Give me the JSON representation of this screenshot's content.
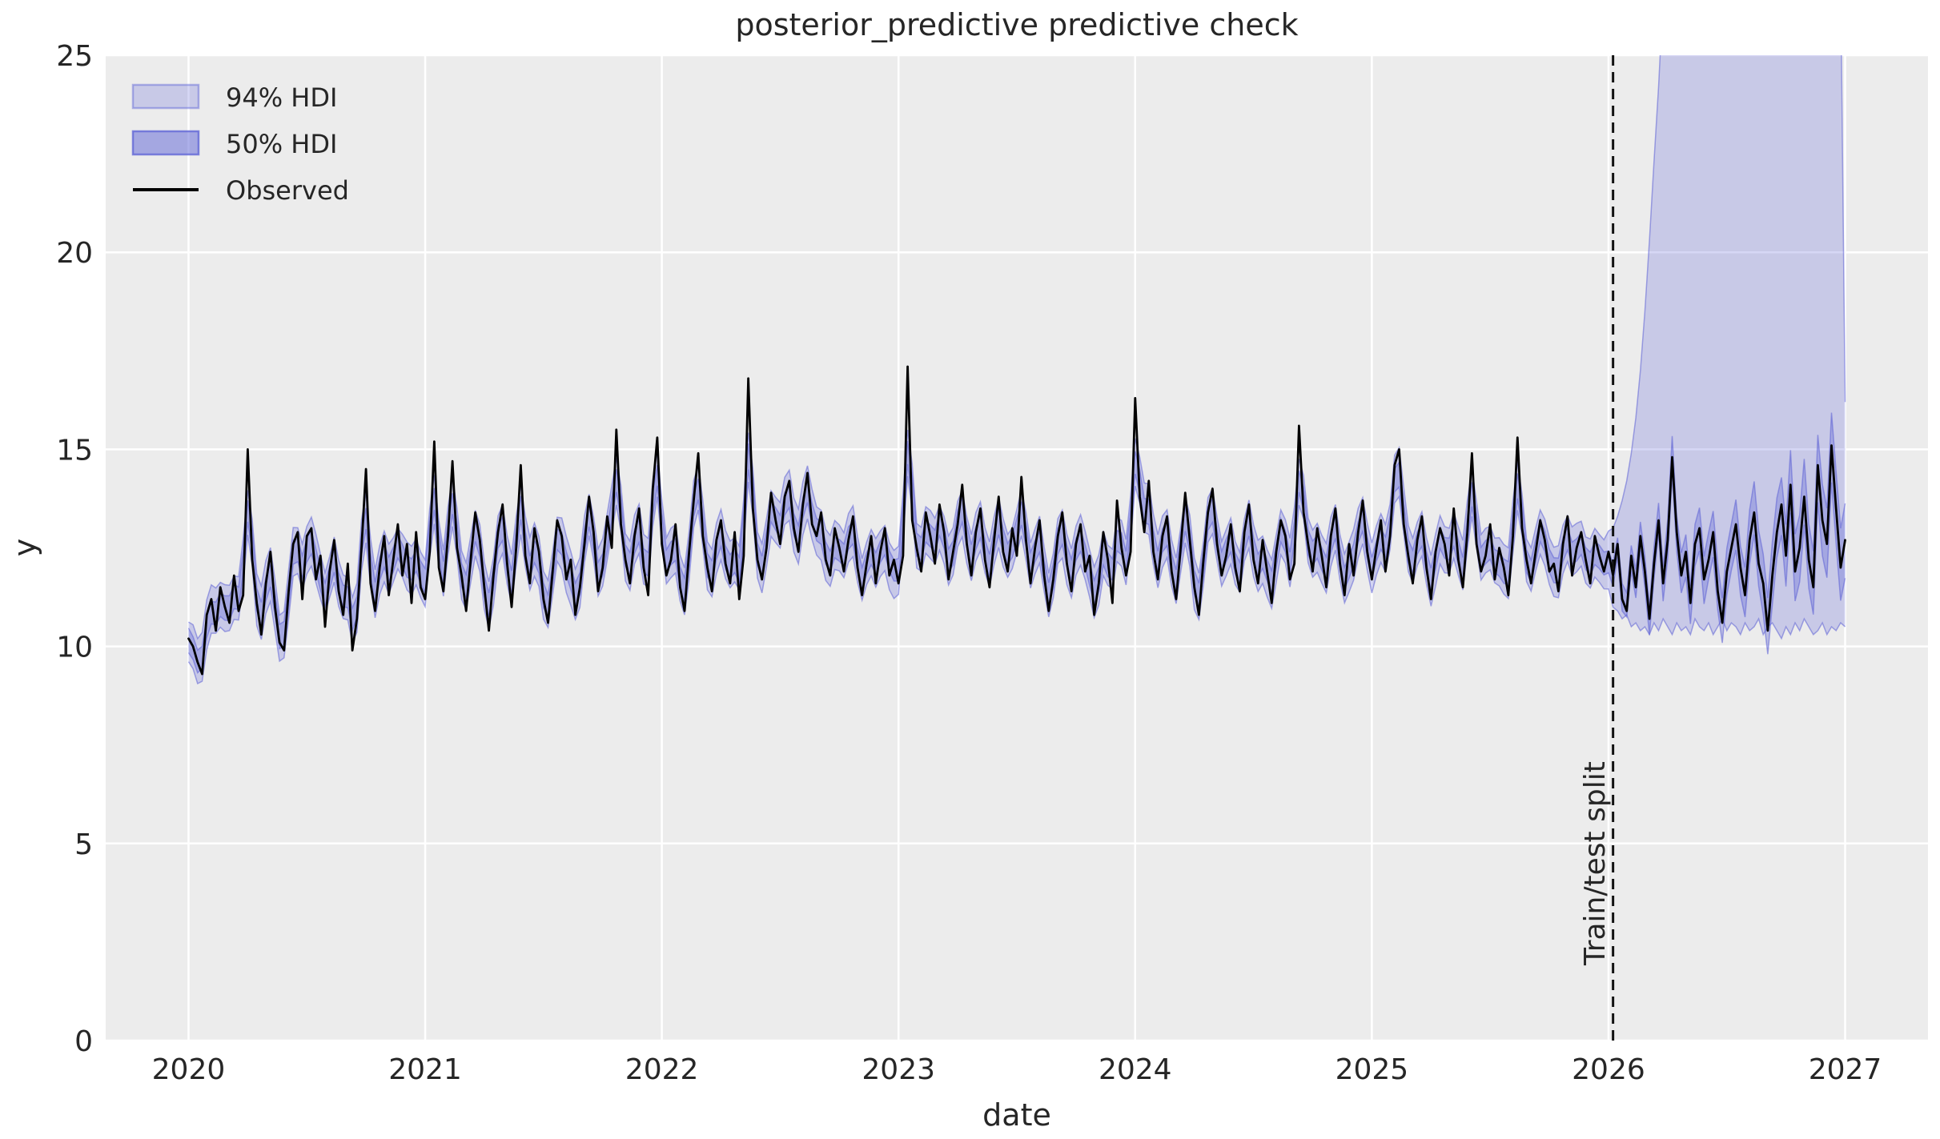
{
  "figure": {
    "title": "posterior_predictive predictive check",
    "xlabel": "date",
    "ylabel": "y"
  },
  "legend": {
    "items": [
      {
        "label": "94% HDI",
        "type": "patch",
        "level": 94
      },
      {
        "label": "50% HDI",
        "type": "patch",
        "level": 50
      },
      {
        "label": "Observed",
        "type": "line"
      }
    ]
  },
  "split": {
    "label": "Train/test split",
    "x": 2026.0192
  },
  "chart_data": {
    "type": "line",
    "title": "posterior_predictive predictive check",
    "xlabel": "date",
    "ylabel": "y",
    "xlim": [
      2019.65,
      2027.35
    ],
    "ylim": [
      0,
      25
    ],
    "xticks": [
      2020,
      2021,
      2022,
      2023,
      2024,
      2025,
      2026,
      2027
    ],
    "yticks": [
      0,
      5,
      10,
      15,
      20,
      25
    ],
    "grid": true,
    "legend_position": "upper left",
    "x_start": 2020.0,
    "x_step_years": 0.01923076923,
    "n_points": 365,
    "split_index": 313,
    "split_x": 2026.0192,
    "observed": [
      10.2,
      10.0,
      9.6,
      9.3,
      10.8,
      11.2,
      10.4,
      11.5,
      11.0,
      10.6,
      11.8,
      10.9,
      11.3,
      15.0,
      12.2,
      11.1,
      10.3,
      11.6,
      12.4,
      11.0,
      10.1,
      9.9,
      11.4,
      12.6,
      12.9,
      11.2,
      12.8,
      13.0,
      11.7,
      12.3,
      10.5,
      11.9,
      12.7,
      11.4,
      10.8,
      12.1,
      9.9,
      10.7,
      12.5,
      14.5,
      11.6,
      10.9,
      12.0,
      12.8,
      11.3,
      12.2,
      13.1,
      11.8,
      12.6,
      11.1,
      12.9,
      11.5,
      11.2,
      12.4,
      15.2,
      12.0,
      11.4,
      12.8,
      14.7,
      12.5,
      11.8,
      10.9,
      12.2,
      13.4,
      12.7,
      11.5,
      10.4,
      11.8,
      12.9,
      13.6,
      12.1,
      11.0,
      12.5,
      14.6,
      12.3,
      11.6,
      13.0,
      12.4,
      11.2,
      10.6,
      11.9,
      13.2,
      12.8,
      11.7,
      12.2,
      10.8,
      11.5,
      12.6,
      13.8,
      12.9,
      11.4,
      12.0,
      13.3,
      12.5,
      15.5,
      13.1,
      12.2,
      11.6,
      12.8,
      13.5,
      12.0,
      11.3,
      14.0,
      15.3,
      12.6,
      11.8,
      12.2,
      13.1,
      11.5,
      10.9,
      12.4,
      13.7,
      14.9,
      12.8,
      12.0,
      11.4,
      12.7,
      13.2,
      12.1,
      11.6,
      12.9,
      11.2,
      12.3,
      16.8,
      13.5,
      12.2,
      11.7,
      12.5,
      13.9,
      13.2,
      12.6,
      13.8,
      14.2,
      13.0,
      12.4,
      13.6,
      14.4,
      13.1,
      12.8,
      13.4,
      12.2,
      11.8,
      13.0,
      12.5,
      11.9,
      12.7,
      13.3,
      12.0,
      11.3,
      12.1,
      12.8,
      11.6,
      12.4,
      13.0,
      11.8,
      12.2,
      11.6,
      12.3,
      17.1,
      13.2,
      12.5,
      11.9,
      13.4,
      12.8,
      12.1,
      13.6,
      12.9,
      11.7,
      12.4,
      13.1,
      14.1,
      12.6,
      11.8,
      12.9,
      13.5,
      12.2,
      11.5,
      12.7,
      13.8,
      12.4,
      11.9,
      13.0,
      12.3,
      14.3,
      12.7,
      11.6,
      12.5,
      13.2,
      11.8,
      10.9,
      11.7,
      12.8,
      13.4,
      12.1,
      11.4,
      12.6,
      13.1,
      11.9,
      12.3,
      10.8,
      11.6,
      12.9,
      12.2,
      11.1,
      13.7,
      12.5,
      11.8,
      12.4,
      16.3,
      13.8,
      12.9,
      14.2,
      12.4,
      11.7,
      12.8,
      13.3,
      11.9,
      11.2,
      12.5,
      13.9,
      12.7,
      11.5,
      10.8,
      12.2,
      13.4,
      14.0,
      12.6,
      11.8,
      12.3,
      13.1,
      12.0,
      11.4,
      12.9,
      13.6,
      12.2,
      11.6,
      12.7,
      11.9,
      11.1,
      12.4,
      13.2,
      12.8,
      11.7,
      12.1,
      15.6,
      13.4,
      12.6,
      11.9,
      13.0,
      12.3,
      11.5,
      12.8,
      13.5,
      12.1,
      11.3,
      12.6,
      11.8,
      12.9,
      13.7,
      12.4,
      11.7,
      12.5,
      13.2,
      11.9,
      12.8,
      14.6,
      15.0,
      13.1,
      12.3,
      11.6,
      12.7,
      13.3,
      12.0,
      11.2,
      12.4,
      13.0,
      12.6,
      11.8,
      13.5,
      12.2,
      11.5,
      12.9,
      14.9,
      12.6,
      11.9,
      12.3,
      13.1,
      11.7,
      12.5,
      12.0,
      11.3,
      12.8,
      15.3,
      13.0,
      12.2,
      11.6,
      12.4,
      13.2,
      12.7,
      11.9,
      12.1,
      11.4,
      12.6,
      13.3,
      11.8,
      12.5,
      12.9,
      12.2,
      11.6,
      12.8,
      12.3,
      11.9,
      12.4,
      11.8,
      12.6,
      11.2,
      10.9,
      12.3,
      11.5,
      12.8,
      11.9,
      10.7,
      12.1,
      13.2,
      11.6,
      12.7,
      14.8,
      12.9,
      11.8,
      12.4,
      11.1,
      12.6,
      13.0,
      11.7,
      12.2,
      12.9,
      11.4,
      10.6,
      11.9,
      12.5,
      13.1,
      12.0,
      11.3,
      12.7,
      13.4,
      12.1,
      11.6,
      10.4,
      11.8,
      12.9,
      13.6,
      12.3,
      14.1,
      11.9,
      12.5,
      13.8,
      12.2,
      11.5,
      14.6,
      13.2,
      12.6,
      15.1,
      13.5,
      12.0,
      12.7
    ],
    "hdi94_test_hi": [
      13.0,
      13.3,
      13.7,
      14.2,
      14.9,
      15.8,
      17.0,
      18.5,
      20.3,
      22.3,
      24.2,
      26.5,
      29.5,
      33.0,
      36.5,
      39.5,
      42.0,
      43.8,
      45.0,
      45.8,
      46.2,
      46.4,
      46.2,
      46.5,
      46.3,
      46.6,
      46.3,
      46.1,
      46.4,
      46.0,
      46.3,
      45.9,
      46.2,
      45.8,
      46.1,
      45.7,
      46.0,
      45.6,
      45.9,
      45.5,
      45.8,
      45.4,
      45.7,
      45.3,
      45.6,
      45.1,
      44.8,
      44.2,
      43.0,
      38.0,
      27.0,
      16.2
    ],
    "hdi94_test_lo": [
      11.0,
      10.9,
      10.7,
      10.8,
      10.5,
      10.6,
      10.4,
      10.5,
      10.3,
      10.6,
      10.4,
      10.7,
      10.5,
      10.3,
      10.6,
      10.4,
      10.5,
      10.3,
      10.7,
      10.5,
      10.4,
      10.6,
      10.3,
      10.5,
      10.7,
      10.4,
      10.6,
      10.5,
      10.3,
      10.6,
      10.4,
      10.5,
      10.7,
      10.3,
      10.5,
      10.6,
      10.4,
      10.2,
      10.5,
      10.3,
      10.6,
      10.4,
      10.7,
      10.5,
      10.3,
      10.4,
      10.6,
      10.3,
      10.5,
      10.4,
      10.6,
      10.5
    ],
    "band_params": {
      "train_hw94_base": 0.45,
      "train_hw94_jitter": 0.3,
      "hw50_base": 0.22,
      "hw50_jitter": 0.14,
      "center_jitter": 0.22,
      "test_hw50_growth_hi": 0.014,
      "test_hw50_growth_lo": 0.012
    },
    "colors": {
      "figure_bg": "#ffffff",
      "axes_bg": "#ececec",
      "grid": "#ffffff",
      "observed": "#000000",
      "band_base_rgb": "92,97,214",
      "band94_alpha": 0.25,
      "band50_alpha": 0.33,
      "band_edge_alpha": 0.55,
      "legend94_fill": "rgba(92,97,214,0.25)",
      "legend94_edge": "rgba(92,97,214,0.45)",
      "legend50_fill": "rgba(92,97,214,0.50)",
      "legend50_edge": "rgba(92,97,214,0.75)",
      "split_line": "#111111",
      "text": "#262626"
    }
  }
}
